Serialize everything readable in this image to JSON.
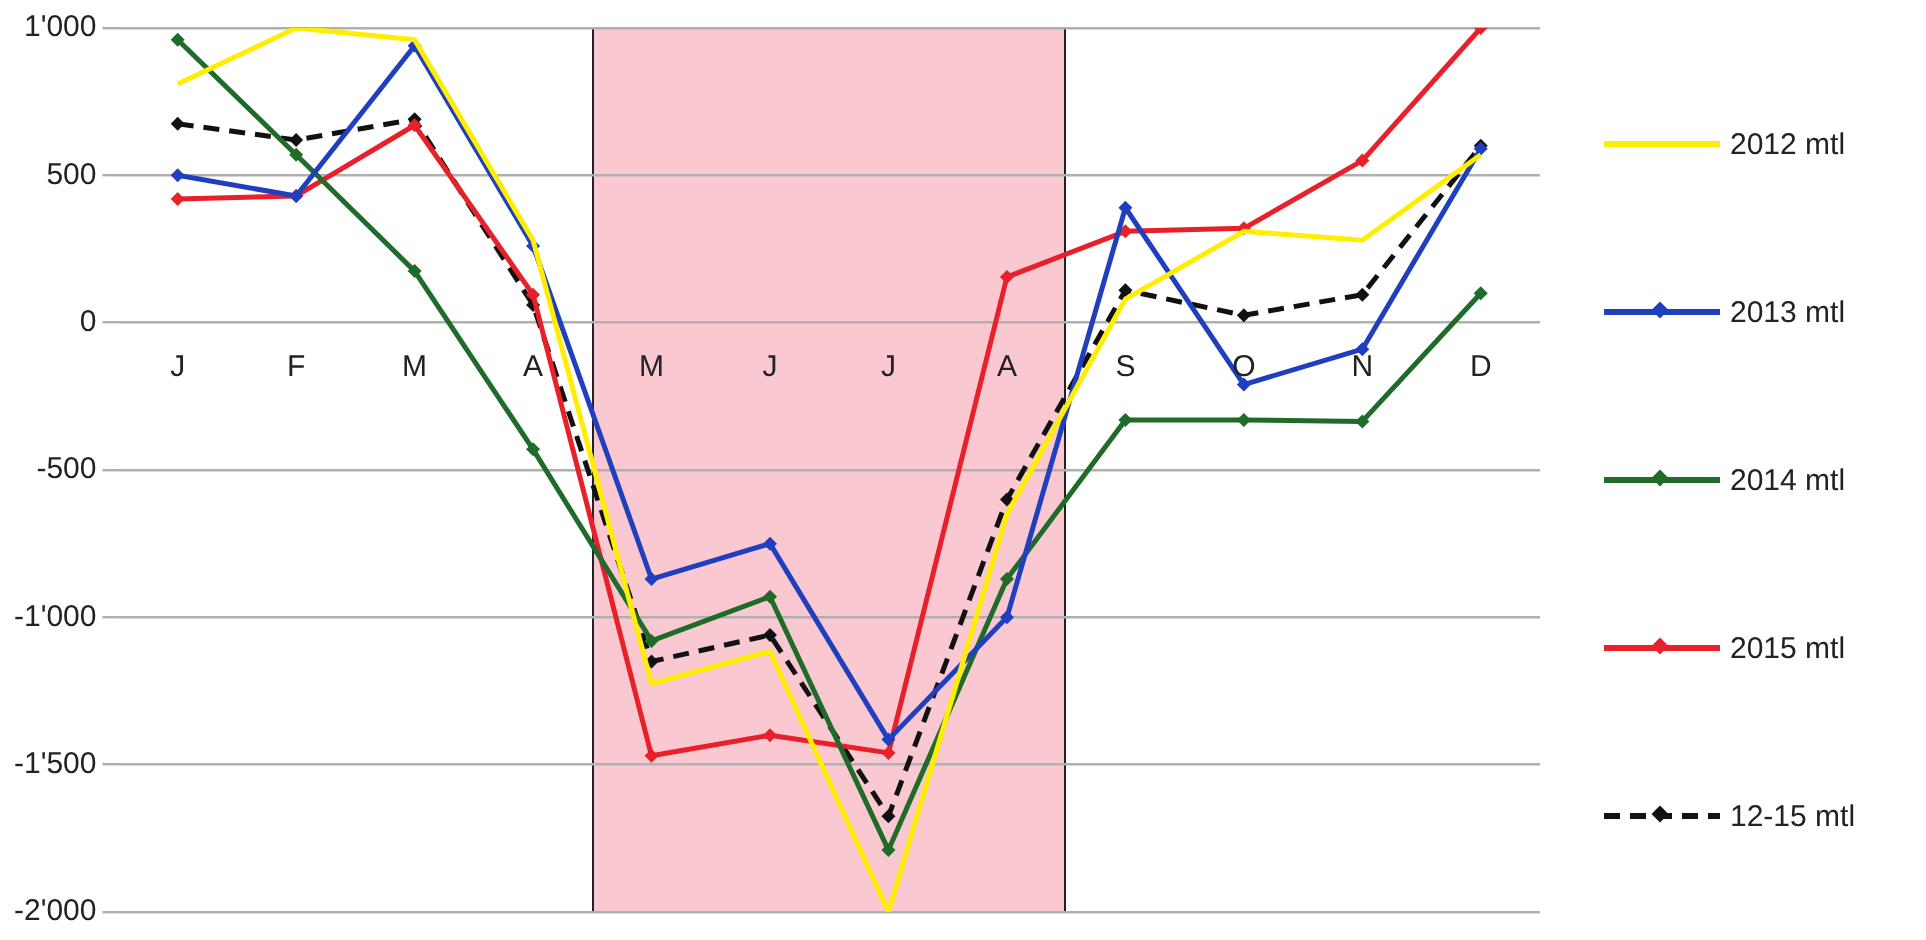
{
  "chart_data": {
    "type": "line",
    "categories": [
      "J",
      "F",
      "M",
      "A",
      "M",
      "J",
      "J",
      "A",
      "S",
      "O",
      "N",
      "D"
    ],
    "series": [
      {
        "name": "2012 mtl",
        "color": "#ffee00",
        "marker": "none",
        "values": [
          810,
          1000,
          960,
          280,
          -1225,
          -1115,
          -2000,
          -650,
          80,
          310,
          280,
          570
        ]
      },
      {
        "name": "2013 mtl",
        "color": "#1f3fbf",
        "values": [
          500,
          430,
          940,
          260,
          -870,
          -750,
          -1415,
          -1000,
          390,
          -210,
          -90,
          590
        ]
      },
      {
        "name": "2014 mtl",
        "color": "#1e6b2a",
        "values": [
          960,
          570,
          175,
          -430,
          -1080,
          -930,
          -1790,
          -870,
          -330,
          -330,
          -335,
          100
        ]
      },
      {
        "name": "2015 mtl",
        "color": "#e8202a",
        "values": [
          420,
          430,
          670,
          95,
          -1470,
          -1400,
          -1460,
          155,
          310,
          320,
          550,
          1000
        ]
      },
      {
        "name": "12-15 mtl",
        "color": "#111111",
        "line_style": "dashed",
        "values": [
          675,
          620,
          690,
          60,
          -1150,
          -1060,
          -1675,
          -600,
          110,
          25,
          95,
          600
        ]
      }
    ],
    "ylim": [
      -2000,
      1000
    ],
    "yticks": [
      {
        "value": -2000,
        "label": "-2'000"
      },
      {
        "value": -1500,
        "label": "-1'500"
      },
      {
        "value": -1000,
        "label": "-1'000"
      },
      -500,
      0,
      500,
      {
        "value": 1000,
        "label": "1'000"
      }
    ],
    "grid": "y",
    "legend": "right",
    "marker": "diamond",
    "line_style": "solid"
  }
}
